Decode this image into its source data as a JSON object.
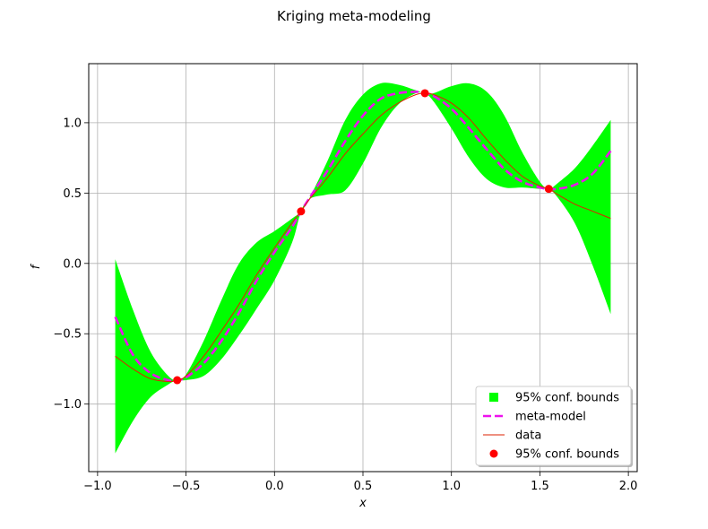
{
  "chart_data": {
    "type": "line",
    "title": "Kriging meta-modeling",
    "xlabel": "x",
    "ylabel": "f",
    "xlim": [
      -1.05,
      2.05
    ],
    "ylim": [
      -1.48,
      1.42
    ],
    "xticks": [
      -1.0,
      -0.5,
      0.0,
      0.5,
      1.0,
      1.5,
      2.0
    ],
    "xtick_labels": [
      "−1.0",
      "−0.5",
      "0.0",
      "0.5",
      "1.0",
      "1.5",
      "2.0"
    ],
    "yticks": [
      -1.0,
      -0.5,
      0.0,
      0.5,
      1.0
    ],
    "ytick_labels": [
      "−1.0",
      "−0.5",
      "0.0",
      "0.5",
      "1.0"
    ],
    "grid": true,
    "legend_placement": "lower-right",
    "series": [
      {
        "name": "95% conf. bounds",
        "kind": "band",
        "color": "#00ff00",
        "x": [
          -0.9,
          -0.8,
          -0.7,
          -0.6,
          -0.55,
          -0.5,
          -0.4,
          -0.3,
          -0.2,
          -0.1,
          0.0,
          0.1,
          0.15,
          0.2,
          0.3,
          0.4,
          0.5,
          0.6,
          0.7,
          0.8,
          0.85,
          0.9,
          1.0,
          1.1,
          1.2,
          1.3,
          1.4,
          1.5,
          1.55,
          1.6,
          1.7,
          1.8,
          1.9
        ],
        "lower": [
          -1.35,
          -1.12,
          -0.95,
          -0.86,
          -0.83,
          -0.83,
          -0.8,
          -0.68,
          -0.51,
          -0.32,
          -0.12,
          0.15,
          0.37,
          0.46,
          0.49,
          0.52,
          0.71,
          0.96,
          1.13,
          1.21,
          1.21,
          1.15,
          0.96,
          0.75,
          0.6,
          0.54,
          0.54,
          0.53,
          0.53,
          0.47,
          0.28,
          -0.02,
          -0.36
        ],
        "upper": [
          0.03,
          -0.33,
          -0.63,
          -0.8,
          -0.83,
          -0.79,
          -0.55,
          -0.26,
          0.0,
          0.15,
          0.23,
          0.32,
          0.37,
          0.47,
          0.73,
          1.02,
          1.2,
          1.28,
          1.27,
          1.23,
          1.21,
          1.21,
          1.26,
          1.28,
          1.22,
          1.05,
          0.79,
          0.58,
          0.53,
          0.57,
          0.68,
          0.84,
          1.02
        ]
      },
      {
        "name": "meta-model",
        "kind": "line",
        "color": "#ee11ee",
        "dash": true,
        "x": [
          -0.9,
          -0.8,
          -0.7,
          -0.6,
          -0.55,
          -0.5,
          -0.4,
          -0.3,
          -0.2,
          -0.1,
          0.0,
          0.1,
          0.15,
          0.2,
          0.3,
          0.4,
          0.5,
          0.6,
          0.7,
          0.8,
          0.85,
          0.9,
          1.0,
          1.1,
          1.2,
          1.3,
          1.4,
          1.5,
          1.55,
          1.6,
          1.7,
          1.8,
          1.9
        ],
        "y": [
          -0.38,
          -0.65,
          -0.78,
          -0.83,
          -0.83,
          -0.81,
          -0.71,
          -0.55,
          -0.35,
          -0.12,
          0.08,
          0.26,
          0.37,
          0.47,
          0.66,
          0.87,
          1.05,
          1.17,
          1.21,
          1.22,
          1.21,
          1.19,
          1.1,
          0.96,
          0.81,
          0.67,
          0.58,
          0.54,
          0.53,
          0.53,
          0.56,
          0.64,
          0.8
        ]
      },
      {
        "name": "data",
        "kind": "line",
        "color": "#dd2200",
        "dash": false,
        "x": [
          -0.9,
          -0.8,
          -0.7,
          -0.6,
          -0.55,
          -0.5,
          -0.4,
          -0.3,
          -0.2,
          -0.1,
          0.0,
          0.1,
          0.15,
          0.2,
          0.3,
          0.4,
          0.5,
          0.6,
          0.7,
          0.8,
          0.85,
          0.9,
          1.0,
          1.1,
          1.2,
          1.3,
          1.4,
          1.5,
          1.55,
          1.6,
          1.7,
          1.8,
          1.9
        ],
        "y": [
          -0.66,
          -0.75,
          -0.82,
          -0.84,
          -0.83,
          -0.8,
          -0.66,
          -0.48,
          -0.29,
          -0.08,
          0.11,
          0.29,
          0.37,
          0.46,
          0.61,
          0.78,
          0.92,
          1.05,
          1.14,
          1.2,
          1.21,
          1.2,
          1.14,
          1.03,
          0.88,
          0.74,
          0.62,
          0.55,
          0.53,
          0.49,
          0.42,
          0.37,
          0.32
        ]
      },
      {
        "name": "95% conf. bounds",
        "kind": "points",
        "color": "#ff0000",
        "x": [
          -0.55,
          0.15,
          0.85,
          1.55
        ],
        "y": [
          -0.83,
          0.37,
          1.21,
          0.53
        ]
      }
    ]
  }
}
